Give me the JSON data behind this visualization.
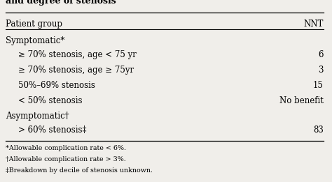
{
  "col_headers": [
    "Patient group",
    "NNT"
  ],
  "rows": [
    {
      "label": "Symptomatic*",
      "value": "",
      "indent": false
    },
    {
      "label": "≥ 70% stenosis, age < 75 yr",
      "value": "6",
      "indent": true
    },
    {
      "label": "≥ 70% stenosis, age ≥ 75yr",
      "value": "3",
      "indent": true
    },
    {
      "label": "50%–69% stenosis",
      "value": "15",
      "indent": true
    },
    {
      "label": "< 50% stenosis",
      "value": "No benefit",
      "indent": true
    },
    {
      "label": "Asymptomatic†",
      "value": "",
      "indent": false
    },
    {
      "label": "> 60% stenosis‡",
      "value": "83",
      "indent": true
    }
  ],
  "footnotes": [
    "*Allowable complication rate < 6%.",
    "†Allowable complication rate > 3%.",
    "‡Breakdown by decile of stenosis unknown."
  ],
  "title_text": "and degree of stenosis",
  "bg_color": "#f0eeea",
  "font_family": "serif",
  "font_size_header": 8.5,
  "font_size_body": 8.5,
  "font_size_footnote": 6.8,
  "title_fontsize": 9.0
}
